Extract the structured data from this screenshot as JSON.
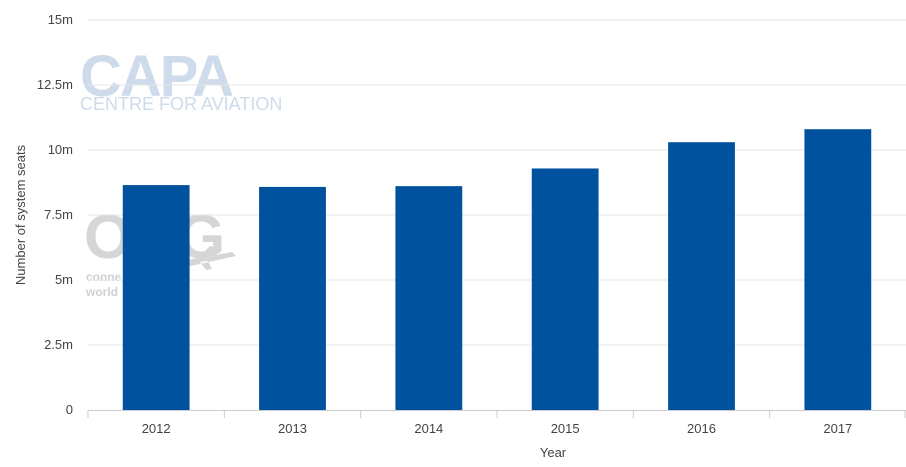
{
  "watermarks": {
    "capa_logo": "CAPA",
    "capa_sub": "CENTRE FOR AVIATION",
    "oag_logo": "OAG",
    "oag_line1": "conne",
    "oag_line2": "world"
  },
  "colors": {
    "bar": "#00529f",
    "grid": "#e6e6e6",
    "axis": "#cccccc"
  },
  "chart_data": {
    "type": "bar",
    "title": "",
    "xlabel": "Year",
    "ylabel": "Number of system seats",
    "categories": [
      "2012",
      "2013",
      "2014",
      "2015",
      "2016",
      "2017"
    ],
    "values": [
      8650000,
      8580000,
      8610000,
      9290000,
      10300000,
      10800000
    ],
    "ylim": [
      0,
      15000000
    ],
    "yticks": [
      0,
      2500000,
      5000000,
      7500000,
      10000000,
      12500000,
      15000000
    ],
    "ytick_labels": [
      "0",
      "2.5m",
      "5m",
      "7.5m",
      "10m",
      "12.5m",
      "15m"
    ],
    "grid": true,
    "legend": "none"
  }
}
